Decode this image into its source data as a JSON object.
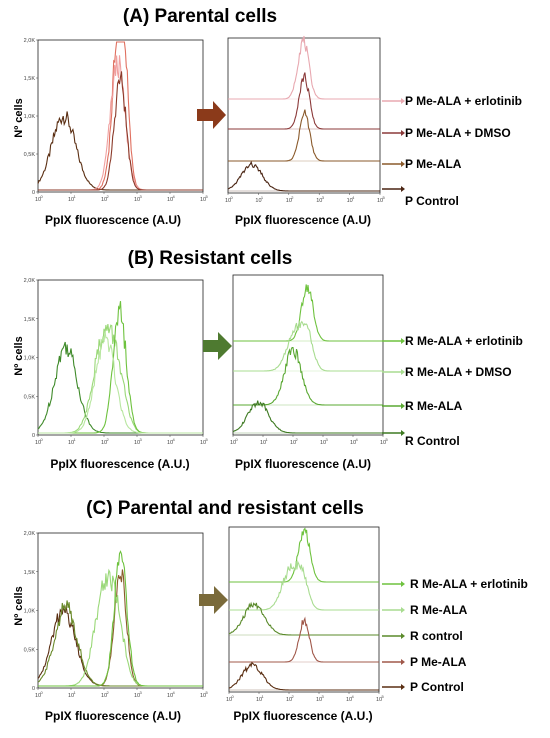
{
  "panels": [
    {
      "title": "(A) Parental cells",
      "left_xlabel": "PpIX fluorescence (A.U)",
      "right_xlabel": "PpIX fluorescence (A.U)",
      "ylabel": "Nº cells",
      "legend": [
        "P Me-ALA + erlotinib",
        "P Me-ALA + DMSO",
        "P Me-ALA",
        "P Control"
      ]
    },
    {
      "title": "(B) Resistant cells",
      "left_xlabel": "PpIX fluorescence (A.U.)",
      "right_xlabel": "PpIX fluorescence (A.U)",
      "ylabel": "Nº cells",
      "legend": [
        "R Me-ALA + erlotinib",
        "R Me-ALA + DMSO",
        "R Me-ALA",
        "R Control"
      ]
    },
    {
      "title": "(C) Parental and resistant cells",
      "left_xlabel": "PpIX fluorescence (A.U)",
      "right_xlabel": "PpIX fluorescence (A.U.)",
      "ylabel": "Nº cells",
      "legend": [
        "R Me-ALA + erlotinib",
        "R Me-ALA",
        "R control",
        "P Me-ALA",
        "P Control"
      ]
    }
  ],
  "chart_data": [
    {
      "type": "line",
      "title": "(A) Parental cells",
      "xlabel": "PpIX fluorescence (A.U)",
      "ylabel": "Nº cells",
      "xscale": "log",
      "xlim": [
        1,
        100000
      ],
      "ylim": [
        0,
        2000
      ],
      "yticks": [
        "0",
        "0,5K",
        "1,0K",
        "1,5K",
        "2,0K"
      ],
      "xticks": [
        1,
        10,
        100,
        1000,
        10000,
        100000
      ],
      "overlay": true,
      "series": [
        {
          "color": "#5a2e12",
          "peaks": [
            {
              "x": 6,
              "y": 1000,
              "w": 0.36
            }
          ]
        },
        {
          "color": "#e07060",
          "peaks": [
            {
              "x": 280,
              "y": 1600,
              "w": 0.2
            },
            {
              "x": 350,
              "y": 1300,
              "w": 0.16
            }
          ]
        },
        {
          "color": "#f0a0a0",
          "peaks": [
            {
              "x": 260,
              "y": 1700,
              "w": 0.22
            }
          ]
        },
        {
          "color": "#8b3a2a",
          "peaks": [
            {
              "x": 310,
              "y": 1500,
              "w": 0.18
            }
          ]
        }
      ]
    },
    {
      "type": "line",
      "title": "(A) Parental cells",
      "xlabel": "PpIX fluorescence (A.U)",
      "xscale": "log",
      "xlim": [
        1,
        100000
      ],
      "overlay": false,
      "series": [
        {
          "name": "P Me-ALA + erlotinib",
          "color": "#e8a8b0",
          "peaks": [
            {
              "x": 300,
              "y": 1000,
              "w": 0.18
            }
          ]
        },
        {
          "name": "P Me-ALA + DMSO",
          "color": "#8b3a3a",
          "peaks": [
            {
              "x": 320,
              "y": 900,
              "w": 0.17
            }
          ]
        },
        {
          "name": "P Me-ALA",
          "color": "#8a5a2b",
          "peaks": [
            {
              "x": 330,
              "y": 820,
              "w": 0.17
            }
          ]
        },
        {
          "name": "P Control",
          "color": "#4a2412",
          "peaks": [
            {
              "x": 6,
              "y": 450,
              "w": 0.34
            }
          ]
        }
      ]
    },
    {
      "type": "line",
      "title": "(B) Resistant cells",
      "xlabel": "PpIX fluorescence (A.U.)",
      "ylabel": "Nº cells",
      "xscale": "log",
      "xlim": [
        1,
        100000
      ],
      "ylim": [
        0,
        2000
      ],
      "yticks": [
        "0",
        "0,5K",
        "1,0K",
        "1,5K",
        "2,0K"
      ],
      "xticks": [
        1,
        10,
        100,
        1000,
        10000,
        100000
      ],
      "overlay": true,
      "series": [
        {
          "color": "#3f8a2a",
          "peaks": [
            {
              "x": 7,
              "y": 1150,
              "w": 0.34
            }
          ]
        },
        {
          "color": "#9ad878",
          "peaks": [
            {
              "x": 90,
              "y": 1150,
              "w": 0.3
            },
            {
              "x": 250,
              "y": 700,
              "w": 0.25
            }
          ]
        },
        {
          "color": "#6ec23e",
          "peaks": [
            {
              "x": 300,
              "y": 1600,
              "w": 0.2
            }
          ]
        },
        {
          "color": "#b8e6a0",
          "peaks": [
            {
              "x": 110,
              "y": 1250,
              "w": 0.3
            }
          ]
        }
      ]
    },
    {
      "type": "line",
      "title": "(B) Resistant cells",
      "xlabel": "PpIX fluorescence (A.U)",
      "xscale": "log",
      "xlim": [
        1,
        100000
      ],
      "overlay": false,
      "series": [
        {
          "name": "R Me-ALA + erlotinib",
          "color": "#6ec23e",
          "peaks": [
            {
              "x": 300,
              "y": 1000,
              "w": 0.19
            }
          ]
        },
        {
          "name": "R Me-ALA + DMSO",
          "color": "#a8dc90",
          "peaks": [
            {
              "x": 120,
              "y": 700,
              "w": 0.28
            },
            {
              "x": 300,
              "y": 550,
              "w": 0.2
            }
          ]
        },
        {
          "name": "R Me-ALA",
          "color": "#5aa832",
          "peaks": [
            {
              "x": 100,
              "y": 1000,
              "w": 0.28
            }
          ]
        },
        {
          "name": "R Control",
          "color": "#3e7a22",
          "peaks": [
            {
              "x": 7,
              "y": 560,
              "w": 0.34
            }
          ]
        }
      ]
    },
    {
      "type": "line",
      "title": "(C) Parental and resistant cells",
      "xlabel": "PpIX fluorescence (A.U)",
      "ylabel": "Nº cells",
      "xscale": "log",
      "xlim": [
        1,
        100000
      ],
      "ylim": [
        0,
        2000
      ],
      "yticks": [
        "0",
        "0,5K",
        "1,0K",
        "1,5K",
        "2,0K"
      ],
      "xticks": [
        1,
        10,
        100,
        1000,
        10000,
        100000
      ],
      "overlay": true,
      "series": [
        {
          "color": "#5a2e12",
          "peaks": [
            {
              "x": 6,
              "y": 1000,
              "w": 0.36
            }
          ]
        },
        {
          "color": "#6a8a2a",
          "peaks": [
            {
              "x": 7,
              "y": 1050,
              "w": 0.34
            }
          ]
        },
        {
          "color": "#8a5a2b",
          "peaks": [
            {
              "x": 310,
              "y": 1550,
              "w": 0.18
            }
          ]
        },
        {
          "color": "#9ad878",
          "peaks": [
            {
              "x": 100,
              "y": 1200,
              "w": 0.3
            },
            {
              "x": 250,
              "y": 650,
              "w": 0.24
            }
          ]
        },
        {
          "color": "#6ec23e",
          "peaks": [
            {
              "x": 320,
              "y": 1750,
              "w": 0.19
            }
          ]
        }
      ]
    },
    {
      "type": "line",
      "title": "(C) Parental and resistant cells",
      "xlabel": "PpIX fluorescence (A.U.)",
      "xscale": "log",
      "xlim": [
        1,
        100000
      ],
      "overlay": false,
      "series": [
        {
          "name": "R Me-ALA + erlotinib",
          "color": "#6ec23e",
          "peaks": [
            {
              "x": 320,
              "y": 1000,
              "w": 0.19
            }
          ]
        },
        {
          "name": "R Me-ALA",
          "color": "#a8dc90",
          "peaks": [
            {
              "x": 110,
              "y": 750,
              "w": 0.28
            },
            {
              "x": 280,
              "y": 500,
              "w": 0.2
            }
          ]
        },
        {
          "name": "R control",
          "color": "#5a8a2a",
          "peaks": [
            {
              "x": 7,
              "y": 600,
              "w": 0.34
            }
          ]
        },
        {
          "name": "P Me-ALA",
          "color": "#a0584a",
          "peaks": [
            {
              "x": 320,
              "y": 800,
              "w": 0.17
            }
          ]
        },
        {
          "name": "P Control",
          "color": "#5a2e12",
          "peaks": [
            {
              "x": 6,
              "y": 480,
              "w": 0.34
            }
          ]
        }
      ]
    }
  ],
  "arrows": {
    "A": "#8b3a1a",
    "B": "#4e7a30",
    "C": "#7a6a3a"
  }
}
